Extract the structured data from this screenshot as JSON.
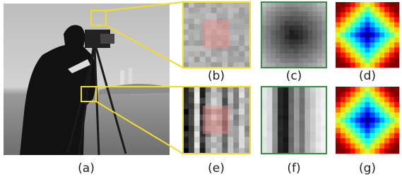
{
  "labels": [
    "(a)",
    "(b)",
    "(c)",
    "(d)",
    "(e)",
    "(f)",
    "(g)"
  ]
}
